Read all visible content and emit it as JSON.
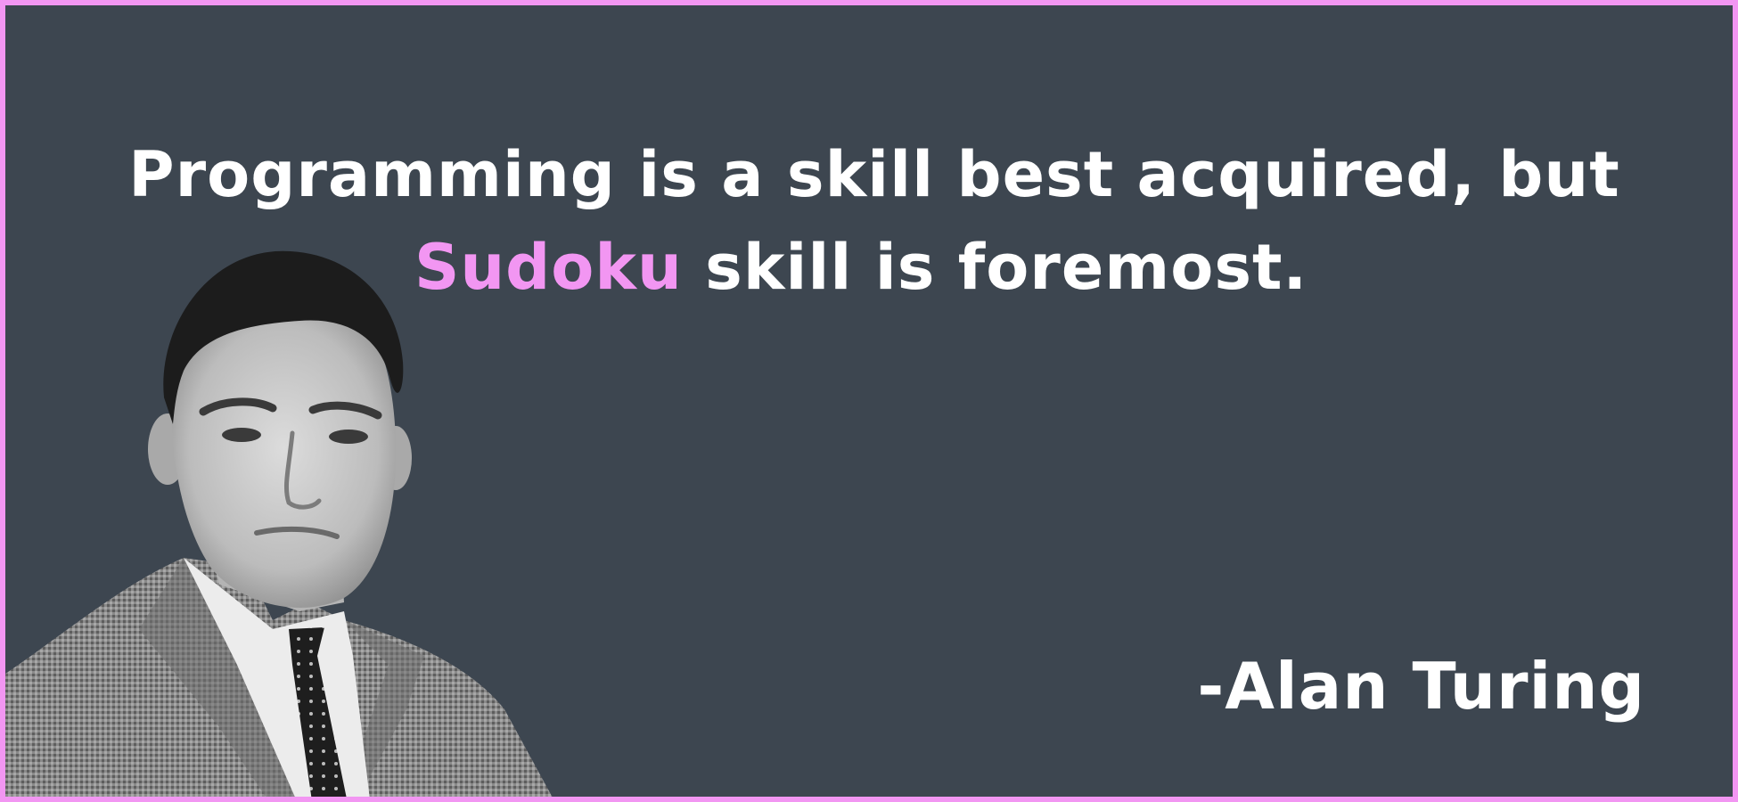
{
  "quote": {
    "line1": "Programming is a skill best acquired, but",
    "highlight": "Sudoku",
    "line2_rest": " skill is foremost."
  },
  "author": "-Alan Turing",
  "colors": {
    "background": "#3d4650",
    "border": "#f296f2",
    "accent": "#f296f2",
    "text": "#ffffff"
  },
  "portrait": {
    "icon": "person-portrait-icon"
  }
}
